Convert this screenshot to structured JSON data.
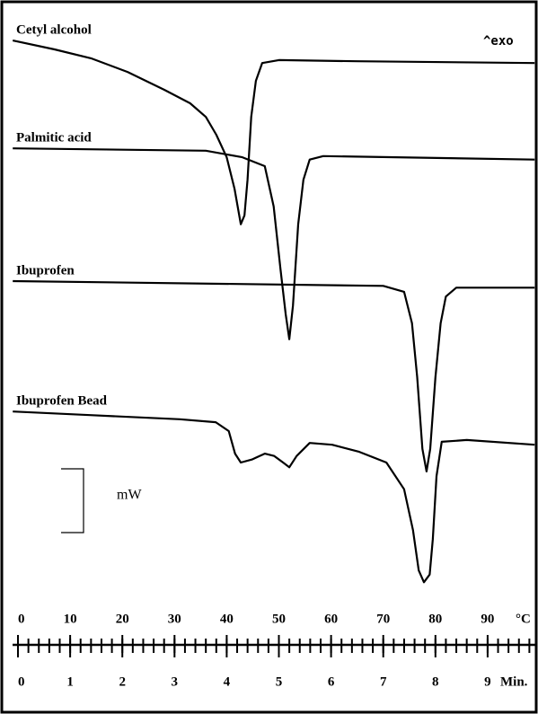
{
  "chart_data": {
    "type": "line",
    "annotation": "^exo",
    "scale_bar_label": "mW",
    "xlabel": "°C",
    "x2label": "Min.",
    "xlim": [
      -1,
      99
    ],
    "ylim": [
      0,
      100
    ],
    "xticks": [
      0,
      10,
      20,
      30,
      40,
      50,
      60,
      70,
      80,
      90
    ],
    "x2lim": [
      -0.1,
      9.9
    ],
    "x2ticks": [
      0,
      1,
      2,
      3,
      4,
      5,
      6,
      7,
      8,
      9
    ],
    "x2minorticks": [
      0,
      0.2,
      0.4,
      0.6,
      0.8,
      1,
      1.2,
      1.4,
      1.6,
      1.8,
      2,
      2.2,
      2.4,
      2.6,
      2.8,
      3,
      3.2,
      3.4,
      3.6,
      3.8,
      4,
      4.2,
      4.4,
      4.6,
      4.8,
      5,
      5.2,
      5.4,
      5.6,
      5.8,
      6,
      6.2,
      6.4,
      6.6,
      6.8,
      7,
      7.2,
      7.4,
      7.6,
      7.8,
      8,
      8.2,
      8.4,
      8.6,
      8.8,
      9,
      9.2,
      9.4,
      9.6,
      9.8
    ],
    "series": [
      {
        "name": "Cetyl alcohol",
        "color": "#000000",
        "x": [
          -1,
          7,
          14,
          21,
          28,
          33,
          36,
          38,
          40,
          41.5,
          42.7,
          43.4,
          44,
          44.7,
          45.6,
          46.8,
          50,
          65,
          99
        ],
        "values": [
          96.2,
          94.7,
          93.2,
          90.9,
          87.9,
          85.6,
          83.3,
          80.3,
          76.5,
          71.2,
          65.2,
          66.7,
          72.7,
          83.3,
          89.4,
          92.4,
          92.9,
          92.7,
          92.4
        ]
      },
      {
        "name": "Palmitic acid",
        "color": "#000000",
        "x": [
          -1,
          36,
          43,
          47.3,
          49,
          50.3,
          51.3,
          52,
          52.7,
          53.7,
          54.7,
          55.9,
          58.5,
          99
        ],
        "values": [
          78.0,
          77.6,
          76.5,
          75.0,
          68.2,
          57.6,
          50.0,
          45.8,
          51.5,
          65.2,
          72.7,
          76.1,
          76.7,
          76.1
        ]
      },
      {
        "name": "Ibuprofen",
        "color": "#000000",
        "x": [
          -1,
          70,
          74,
          75.5,
          76.5,
          77.5,
          78.3,
          79,
          80,
          81,
          82,
          84,
          99
        ],
        "values": [
          55.6,
          54.8,
          53.8,
          48.5,
          39.4,
          27.3,
          23.5,
          27.3,
          39.4,
          48.5,
          53.0,
          54.5,
          54.5
        ]
      },
      {
        "name": "Ibuprofen Bead",
        "color": "#000000",
        "x": [
          -1,
          13.8,
          31,
          37.9,
          40.4,
          41.6,
          42.7,
          44.8,
          47.3,
          49.1,
          50.8,
          52,
          53.4,
          55.9,
          60.2,
          65.4,
          70.6,
          74,
          75.7,
          76.8,
          77.8,
          78.9,
          79.5,
          80.2,
          81.2,
          86,
          99
        ],
        "values": [
          33.6,
          33.0,
          32.3,
          31.8,
          30.3,
          26.5,
          25.0,
          25.5,
          26.5,
          26.1,
          25.0,
          24.2,
          26.1,
          28.3,
          28.0,
          26.8,
          25.0,
          20.5,
          13.6,
          6.8,
          4.8,
          6.1,
          12.1,
          22.7,
          28.5,
          28.8,
          28.0
        ]
      }
    ]
  }
}
